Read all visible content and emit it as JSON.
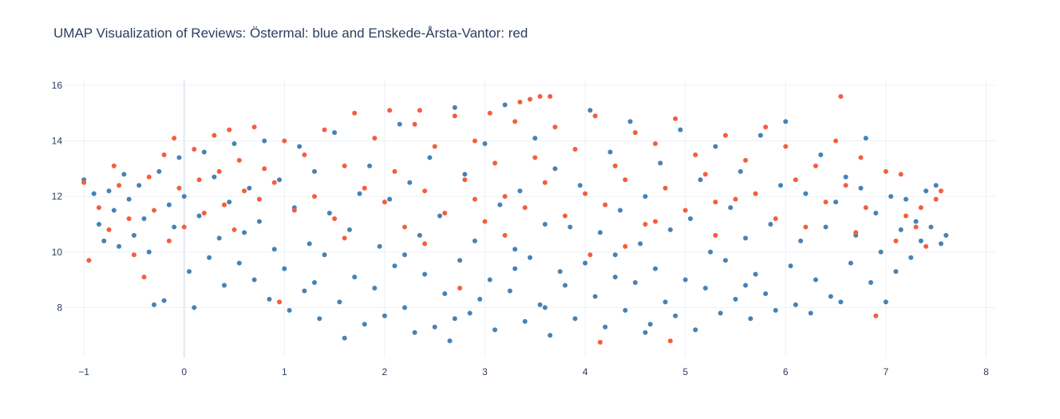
{
  "chart_data": {
    "type": "scatter",
    "title": "UMAP Visualization of Reviews: Östermal: blue and Enskede-Årsta-Vantor: red",
    "xlabel": "",
    "ylabel": "",
    "xlim": [
      -1.2,
      8.1
    ],
    "ylim": [
      6.2,
      16.2
    ],
    "x_ticks": [
      -1,
      0,
      1,
      2,
      3,
      4,
      5,
      6,
      7,
      8
    ],
    "x_tick_labels": [
      "−1",
      "0",
      "1",
      "2",
      "3",
      "4",
      "5",
      "6",
      "7",
      "8"
    ],
    "y_ticks": [
      8,
      10,
      12,
      14,
      16
    ],
    "y_tick_labels": [
      "8",
      "10",
      "12",
      "14",
      "16"
    ],
    "grid": true,
    "legend": "none",
    "series": [
      {
        "color": "#4682b4",
        "points": [
          [
            -1.0,
            12.6
          ],
          [
            -0.9,
            12.1
          ],
          [
            -0.85,
            11.0
          ],
          [
            -0.8,
            10.4
          ],
          [
            -0.75,
            12.2
          ],
          [
            -0.7,
            11.5
          ],
          [
            -0.65,
            10.2
          ],
          [
            -0.6,
            12.8
          ],
          [
            -0.55,
            11.9
          ],
          [
            -0.5,
            10.6
          ],
          [
            -0.45,
            12.4
          ],
          [
            -0.4,
            11.2
          ],
          [
            -0.35,
            10.0
          ],
          [
            -0.3,
            8.1
          ],
          [
            -0.25,
            12.9
          ],
          [
            -0.2,
            8.25
          ],
          [
            -0.15,
            11.7
          ],
          [
            -0.1,
            10.9
          ],
          [
            -0.05,
            13.4
          ],
          [
            0.0,
            12.0
          ],
          [
            0.05,
            9.3
          ],
          [
            0.1,
            8.0
          ],
          [
            0.15,
            11.3
          ],
          [
            0.2,
            13.6
          ],
          [
            0.25,
            9.8
          ],
          [
            0.3,
            12.7
          ],
          [
            0.35,
            10.5
          ],
          [
            0.4,
            8.8
          ],
          [
            0.45,
            11.8
          ],
          [
            0.5,
            13.9
          ],
          [
            0.55,
            9.6
          ],
          [
            0.6,
            10.7
          ],
          [
            0.65,
            12.3
          ],
          [
            0.7,
            9.0
          ],
          [
            0.75,
            11.1
          ],
          [
            0.8,
            14.0
          ],
          [
            0.85,
            8.3
          ],
          [
            0.9,
            10.1
          ],
          [
            0.95,
            12.6
          ],
          [
            1.0,
            9.4
          ],
          [
            1.05,
            7.9
          ],
          [
            1.1,
            11.6
          ],
          [
            1.15,
            13.8
          ],
          [
            1.2,
            8.6
          ],
          [
            1.25,
            10.3
          ],
          [
            1.3,
            12.9
          ],
          [
            1.35,
            7.6
          ],
          [
            1.4,
            9.9
          ],
          [
            1.45,
            11.4
          ],
          [
            1.5,
            14.3
          ],
          [
            1.55,
            8.2
          ],
          [
            1.6,
            6.9
          ],
          [
            1.65,
            10.8
          ],
          [
            1.7,
            9.1
          ],
          [
            1.75,
            12.1
          ],
          [
            1.8,
            7.4
          ],
          [
            1.85,
            13.1
          ],
          [
            1.9,
            8.7
          ],
          [
            1.95,
            10.2
          ],
          [
            2.0,
            7.7
          ],
          [
            2.05,
            11.9
          ],
          [
            2.1,
            9.5
          ],
          [
            2.15,
            14.6
          ],
          [
            2.2,
            8.0
          ],
          [
            2.25,
            12.5
          ],
          [
            2.3,
            7.1
          ],
          [
            2.35,
            10.6
          ],
          [
            2.4,
            9.2
          ],
          [
            2.45,
            13.4
          ],
          [
            2.5,
            7.3
          ],
          [
            2.55,
            11.3
          ],
          [
            2.6,
            8.5
          ],
          [
            2.65,
            6.8
          ],
          [
            2.7,
            15.2
          ],
          [
            2.75,
            9.7
          ],
          [
            2.8,
            12.8
          ],
          [
            2.85,
            7.8
          ],
          [
            2.9,
            10.4
          ],
          [
            2.95,
            8.3
          ],
          [
            3.0,
            13.9
          ],
          [
            3.05,
            9.0
          ],
          [
            3.1,
            7.2
          ],
          [
            3.15,
            11.7
          ],
          [
            3.2,
            15.3
          ],
          [
            3.25,
            8.6
          ],
          [
            3.3,
            10.1
          ],
          [
            3.35,
            12.2
          ],
          [
            3.4,
            7.5
          ],
          [
            3.45,
            9.8
          ],
          [
            3.5,
            14.1
          ],
          [
            3.55,
            8.1
          ],
          [
            3.6,
            11.0
          ],
          [
            3.65,
            7.0
          ],
          [
            3.7,
            13.0
          ],
          [
            3.75,
            9.3
          ],
          [
            3.8,
            8.8
          ],
          [
            3.85,
            10.9
          ],
          [
            3.9,
            7.6
          ],
          [
            3.95,
            12.4
          ],
          [
            4.0,
            9.6
          ],
          [
            4.05,
            15.1
          ],
          [
            4.1,
            8.4
          ],
          [
            4.15,
            10.7
          ],
          [
            4.2,
            7.3
          ],
          [
            4.25,
            13.6
          ],
          [
            4.3,
            9.1
          ],
          [
            4.35,
            11.5
          ],
          [
            4.4,
            7.9
          ],
          [
            4.45,
            14.7
          ],
          [
            4.5,
            8.9
          ],
          [
            4.55,
            10.3
          ],
          [
            4.6,
            12.0
          ],
          [
            4.65,
            7.4
          ],
          [
            4.7,
            9.4
          ],
          [
            4.75,
            13.2
          ],
          [
            4.8,
            8.2
          ],
          [
            4.85,
            10.8
          ],
          [
            4.9,
            7.7
          ],
          [
            4.95,
            14.4
          ],
          [
            5.0,
            9.0
          ],
          [
            5.05,
            11.2
          ],
          [
            5.1,
            7.2
          ],
          [
            5.15,
            12.6
          ],
          [
            5.2,
            8.7
          ],
          [
            5.25,
            10.0
          ],
          [
            5.3,
            13.8
          ],
          [
            5.35,
            7.8
          ],
          [
            5.4,
            9.7
          ],
          [
            5.45,
            11.6
          ],
          [
            5.5,
            8.3
          ],
          [
            5.55,
            12.9
          ],
          [
            5.6,
            10.5
          ],
          [
            5.65,
            7.6
          ],
          [
            5.7,
            9.2
          ],
          [
            5.75,
            14.2
          ],
          [
            5.8,
            8.5
          ],
          [
            5.85,
            11.0
          ],
          [
            5.9,
            7.9
          ],
          [
            5.95,
            12.4
          ],
          [
            6.0,
            14.7
          ],
          [
            6.05,
            9.5
          ],
          [
            6.1,
            8.1
          ],
          [
            6.15,
            10.4
          ],
          [
            6.2,
            12.1
          ],
          [
            6.25,
            7.8
          ],
          [
            6.3,
            9.0
          ],
          [
            6.35,
            13.5
          ],
          [
            6.4,
            10.9
          ],
          [
            6.45,
            8.4
          ],
          [
            6.5,
            11.8
          ],
          [
            6.55,
            8.2
          ],
          [
            6.6,
            12.7
          ],
          [
            6.65,
            9.6
          ],
          [
            6.7,
            10.6
          ],
          [
            6.75,
            12.3
          ],
          [
            6.8,
            14.1
          ],
          [
            6.85,
            8.9
          ],
          [
            6.9,
            11.4
          ],
          [
            6.95,
            10.0
          ],
          [
            7.0,
            8.2
          ],
          [
            7.05,
            12.0
          ],
          [
            7.1,
            9.3
          ],
          [
            7.15,
            10.8
          ],
          [
            7.2,
            11.9
          ],
          [
            7.25,
            9.8
          ],
          [
            7.3,
            11.1
          ],
          [
            7.35,
            10.4
          ],
          [
            7.4,
            12.2
          ],
          [
            7.45,
            10.9
          ],
          [
            7.5,
            12.4
          ],
          [
            7.55,
            10.3
          ],
          [
            7.6,
            10.6
          ],
          [
            1.3,
            8.9
          ],
          [
            2.7,
            7.6
          ],
          [
            3.6,
            8.0
          ],
          [
            4.6,
            7.1
          ],
          [
            5.6,
            8.8
          ],
          [
            2.2,
            9.9
          ],
          [
            3.3,
            9.4
          ],
          [
            4.3,
            9.9
          ]
        ]
      },
      {
        "color": "#f55d3e",
        "points": [
          [
            -1.0,
            12.5
          ],
          [
            -0.95,
            9.7
          ],
          [
            -0.85,
            11.6
          ],
          [
            -0.75,
            10.8
          ],
          [
            -0.7,
            13.1
          ],
          [
            -0.65,
            12.4
          ],
          [
            -0.55,
            11.2
          ],
          [
            -0.5,
            9.9
          ],
          [
            -0.4,
            9.1
          ],
          [
            -0.35,
            12.7
          ],
          [
            -0.3,
            11.5
          ],
          [
            -0.2,
            13.5
          ],
          [
            -0.15,
            10.4
          ],
          [
            -0.1,
            14.1
          ],
          [
            -0.05,
            12.3
          ],
          [
            0.0,
            10.9
          ],
          [
            0.1,
            13.7
          ],
          [
            0.15,
            12.6
          ],
          [
            0.2,
            11.4
          ],
          [
            0.3,
            14.2
          ],
          [
            0.35,
            12.9
          ],
          [
            0.4,
            11.7
          ],
          [
            0.45,
            14.4
          ],
          [
            0.5,
            10.8
          ],
          [
            0.55,
            13.3
          ],
          [
            0.6,
            12.2
          ],
          [
            0.7,
            14.5
          ],
          [
            0.75,
            11.9
          ],
          [
            0.8,
            13.0
          ],
          [
            0.9,
            12.5
          ],
          [
            0.95,
            8.2
          ],
          [
            1.0,
            14.0
          ],
          [
            1.1,
            11.5
          ],
          [
            1.2,
            13.5
          ],
          [
            1.3,
            12.0
          ],
          [
            1.4,
            14.4
          ],
          [
            1.5,
            11.2
          ],
          [
            1.6,
            13.1
          ],
          [
            1.7,
            15.0
          ],
          [
            1.8,
            12.3
          ],
          [
            1.9,
            14.1
          ],
          [
            2.0,
            11.8
          ],
          [
            2.05,
            15.1
          ],
          [
            2.1,
            12.9
          ],
          [
            2.2,
            10.9
          ],
          [
            2.3,
            14.6
          ],
          [
            2.35,
            15.1
          ],
          [
            2.4,
            12.2
          ],
          [
            2.5,
            13.8
          ],
          [
            2.6,
            11.4
          ],
          [
            2.7,
            14.9
          ],
          [
            2.75,
            8.7
          ],
          [
            2.8,
            12.6
          ],
          [
            2.9,
            14.0
          ],
          [
            3.0,
            11.1
          ],
          [
            3.05,
            15.0
          ],
          [
            3.1,
            13.2
          ],
          [
            3.2,
            12.0
          ],
          [
            3.3,
            14.7
          ],
          [
            3.35,
            15.4
          ],
          [
            3.4,
            11.6
          ],
          [
            3.45,
            15.5
          ],
          [
            3.5,
            13.4
          ],
          [
            3.55,
            15.6
          ],
          [
            3.6,
            12.5
          ],
          [
            3.65,
            15.6
          ],
          [
            3.7,
            14.5
          ],
          [
            3.8,
            11.3
          ],
          [
            3.9,
            13.7
          ],
          [
            4.0,
            12.1
          ],
          [
            4.05,
            9.9
          ],
          [
            4.1,
            14.9
          ],
          [
            4.15,
            6.75
          ],
          [
            4.2,
            11.7
          ],
          [
            4.3,
            13.1
          ],
          [
            4.4,
            12.6
          ],
          [
            4.5,
            14.3
          ],
          [
            4.6,
            11.0
          ],
          [
            4.7,
            13.9
          ],
          [
            4.8,
            12.3
          ],
          [
            4.85,
            6.8
          ],
          [
            4.9,
            14.8
          ],
          [
            5.0,
            11.5
          ],
          [
            5.1,
            13.5
          ],
          [
            5.2,
            12.8
          ],
          [
            5.3,
            10.6
          ],
          [
            5.4,
            14.2
          ],
          [
            5.5,
            11.9
          ],
          [
            5.6,
            13.3
          ],
          [
            5.7,
            12.1
          ],
          [
            5.8,
            14.5
          ],
          [
            5.9,
            11.2
          ],
          [
            6.0,
            13.8
          ],
          [
            6.1,
            12.6
          ],
          [
            6.2,
            10.9
          ],
          [
            6.3,
            13.1
          ],
          [
            6.4,
            11.8
          ],
          [
            6.5,
            14.0
          ],
          [
            6.55,
            15.6
          ],
          [
            6.6,
            12.4
          ],
          [
            6.7,
            10.7
          ],
          [
            6.75,
            13.4
          ],
          [
            6.8,
            11.6
          ],
          [
            6.9,
            7.7
          ],
          [
            7.0,
            12.9
          ],
          [
            7.1,
            10.4
          ],
          [
            7.15,
            12.8
          ],
          [
            7.2,
            11.3
          ],
          [
            7.3,
            10.9
          ],
          [
            7.35,
            11.6
          ],
          [
            7.4,
            10.2
          ],
          [
            7.5,
            11.9
          ],
          [
            7.55,
            12.2
          ],
          [
            2.4,
            10.3
          ],
          [
            3.2,
            10.6
          ],
          [
            4.4,
            10.2
          ],
          [
            5.3,
            11.8
          ],
          [
            1.6,
            10.5
          ],
          [
            2.9,
            11.9
          ],
          [
            4.7,
            11.1
          ]
        ]
      }
    ]
  }
}
